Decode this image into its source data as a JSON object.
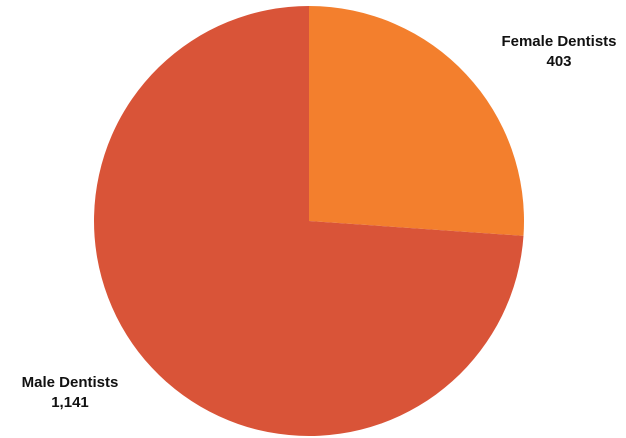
{
  "chart_data": {
    "type": "pie",
    "slices": [
      {
        "label": "Female Dentists",
        "value_text": "403",
        "value": 403,
        "color": "#f37f2d"
      },
      {
        "label": "Male Dentists",
        "value_text": "1,141",
        "value": 1141,
        "color": "#d95438"
      }
    ],
    "start_angle_deg": 0,
    "direction": "clockwise",
    "legend": "none",
    "title": ""
  }
}
